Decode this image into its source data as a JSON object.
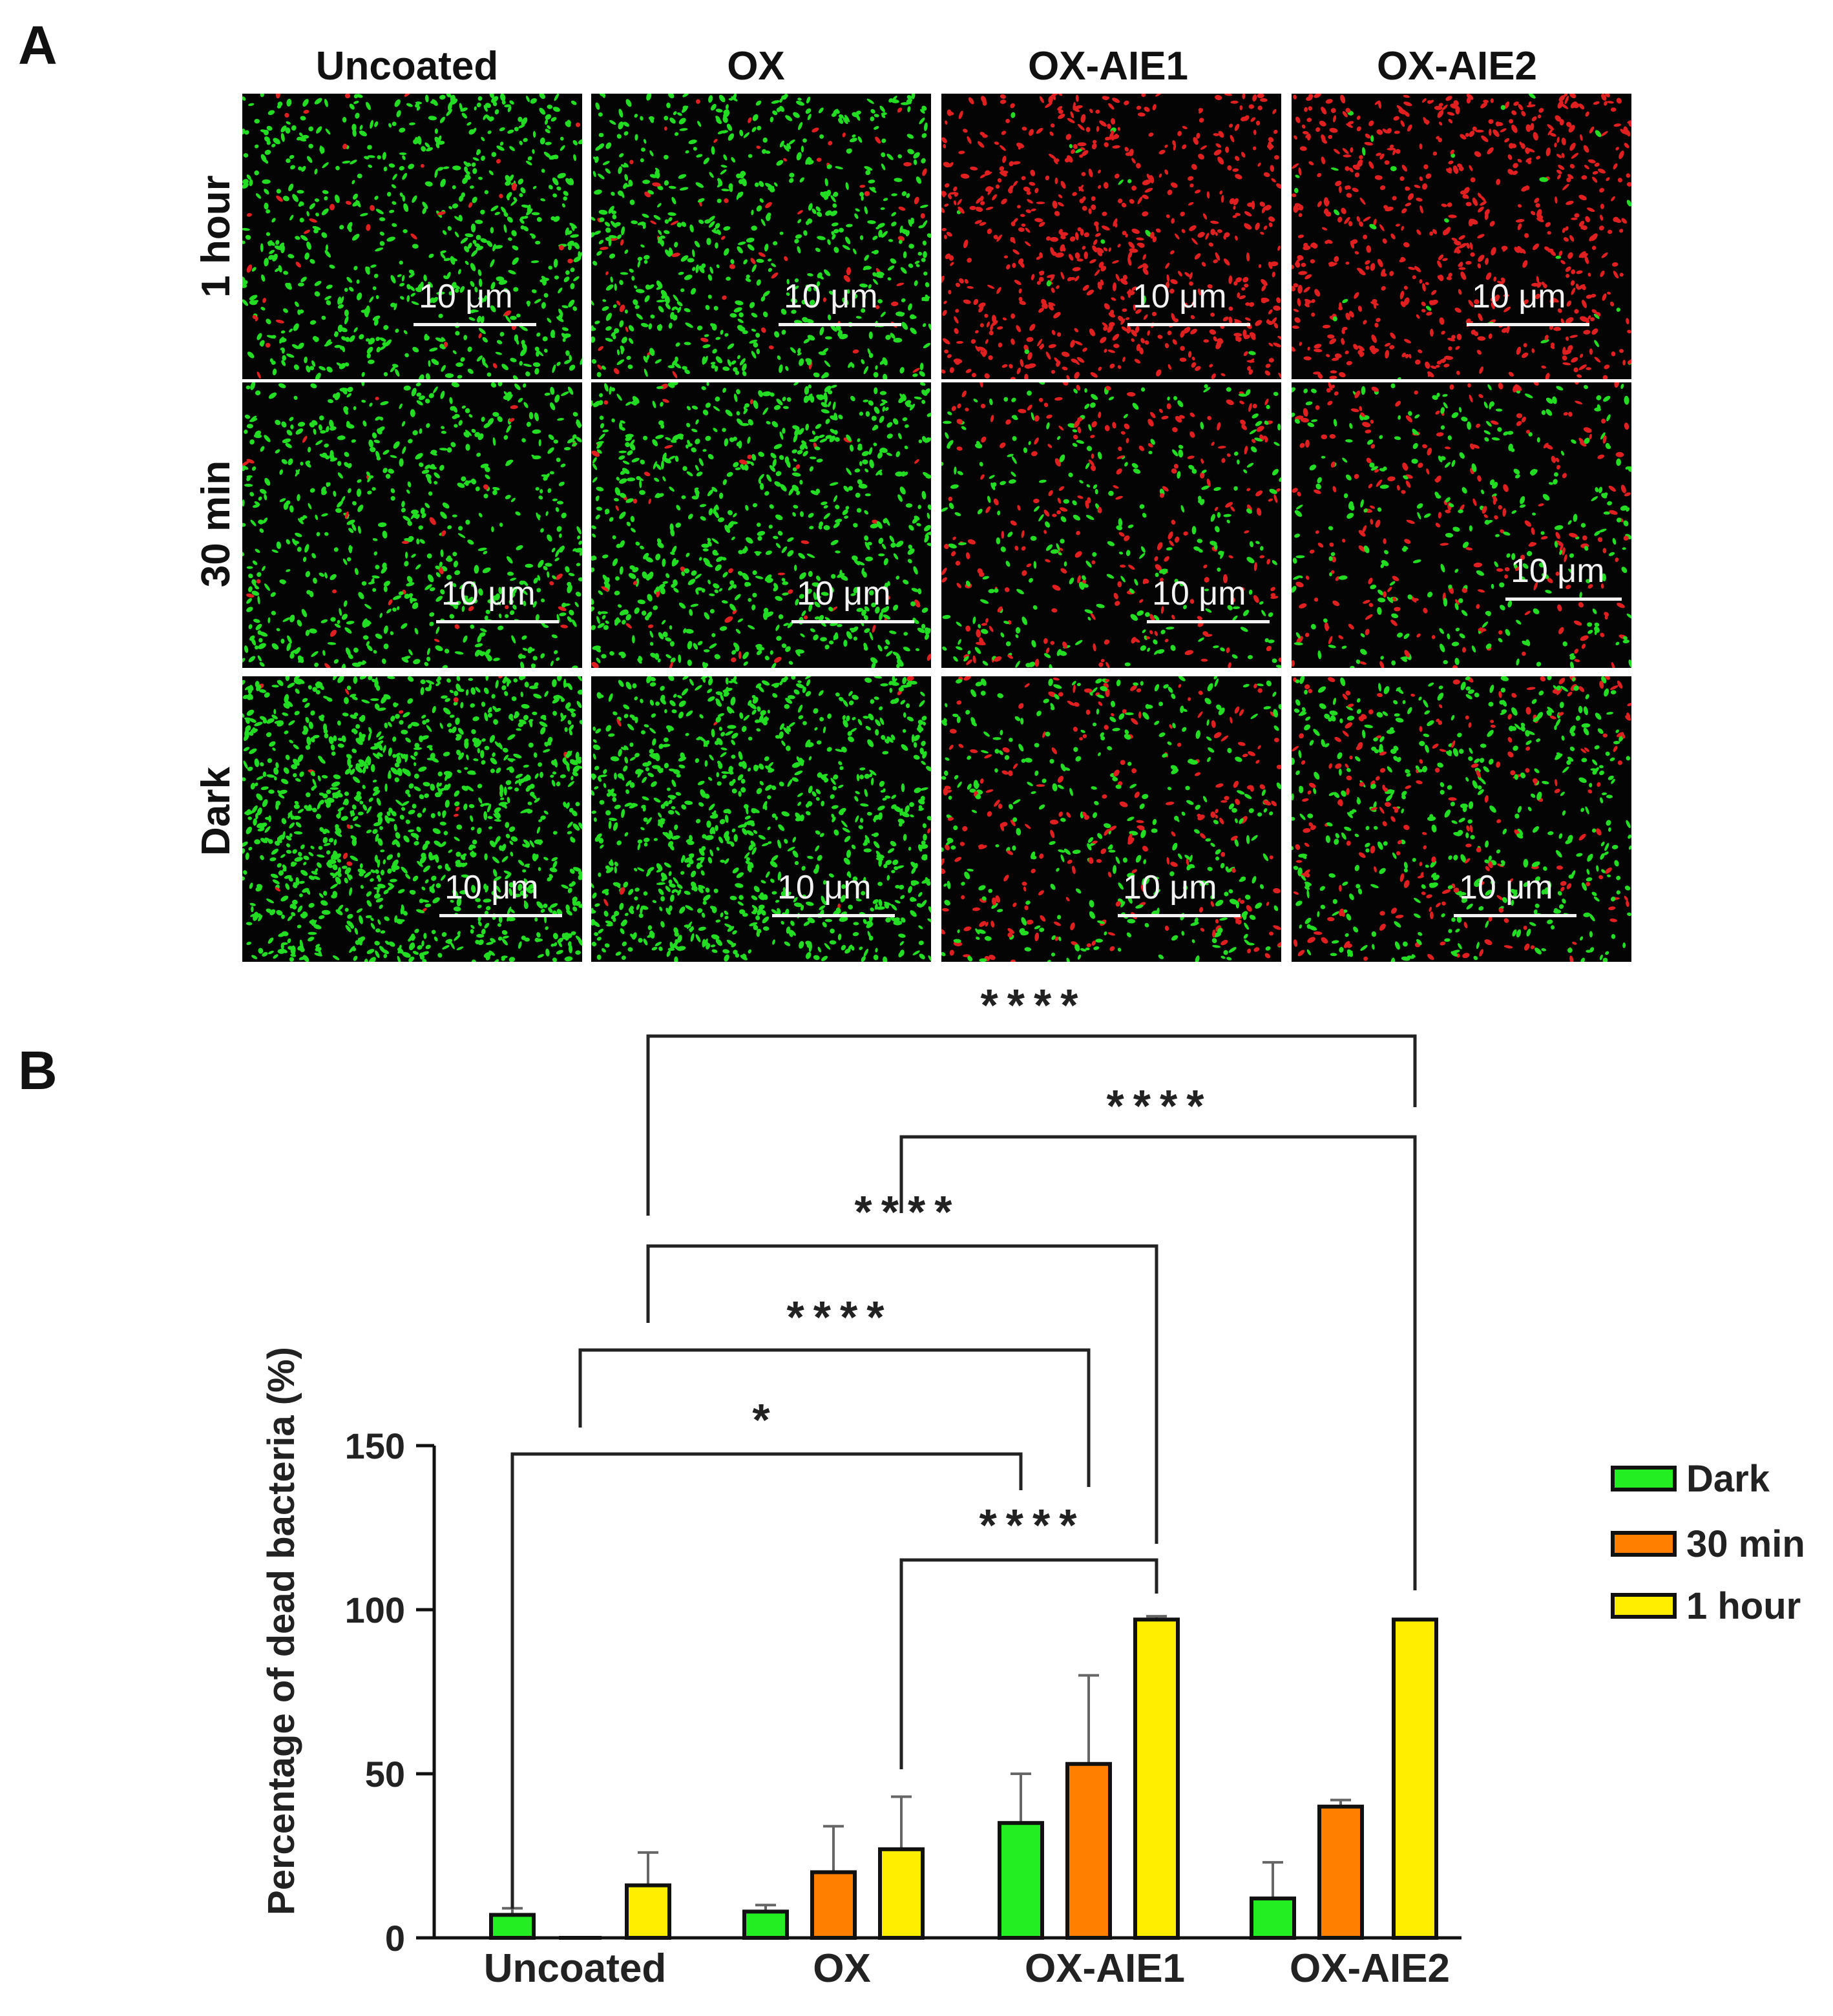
{
  "panel_a": {
    "letter": "A",
    "columns": [
      "Uncoated",
      "OX",
      "OX-AIE1",
      "OX-AIE2"
    ],
    "rows": [
      "1 hour",
      "30 min",
      "Dark"
    ],
    "scale_bar_label": "10 μm",
    "live_color": "#22dd22",
    "dead_color": "#e02020"
  },
  "panel_b": {
    "letter": "B"
  },
  "chart_data": {
    "type": "bar",
    "categories": [
      "Uncoated",
      "OX",
      "OX-AIE1",
      "OX-AIE2"
    ],
    "series": [
      {
        "name": "Dark",
        "color": "#22ee22",
        "values": [
          7,
          8,
          35,
          12
        ],
        "errors": [
          2,
          2,
          15,
          11
        ]
      },
      {
        "name": "30 min",
        "color": "#ff7f00",
        "values": [
          0,
          20,
          53,
          40
        ],
        "errors": [
          0,
          14,
          27,
          2
        ]
      },
      {
        "name": "1 hour",
        "color": "#ffee00",
        "values": [
          16,
          27,
          97,
          97
        ],
        "errors": [
          10,
          16,
          1,
          0
        ]
      }
    ],
    "ylabel": "Percentage of dead bacteria (%)",
    "xlabel": "",
    "ylim": [
      0,
      150
    ],
    "yticks": [
      0,
      50,
      100,
      150
    ],
    "legend_position": "right",
    "significance": [
      {
        "from": "Uncoated Dark",
        "to": "OX-AIE1 Dark",
        "label": "*"
      },
      {
        "from": "OX 1 hour",
        "to": "OX-AIE1 1 hour",
        "label": "****"
      },
      {
        "from": "Uncoated 30 min",
        "to": "OX-AIE1 30 min",
        "label": "****"
      },
      {
        "from": "Uncoated 1 hour",
        "to": "OX-AIE1 1 hour",
        "label": "****"
      },
      {
        "from": "OX 1 hour",
        "to": "OX-AIE2 1 hour",
        "label": "****"
      },
      {
        "from": "Uncoated 1 hour",
        "to": "OX-AIE2 1 hour",
        "label": "****"
      }
    ]
  }
}
